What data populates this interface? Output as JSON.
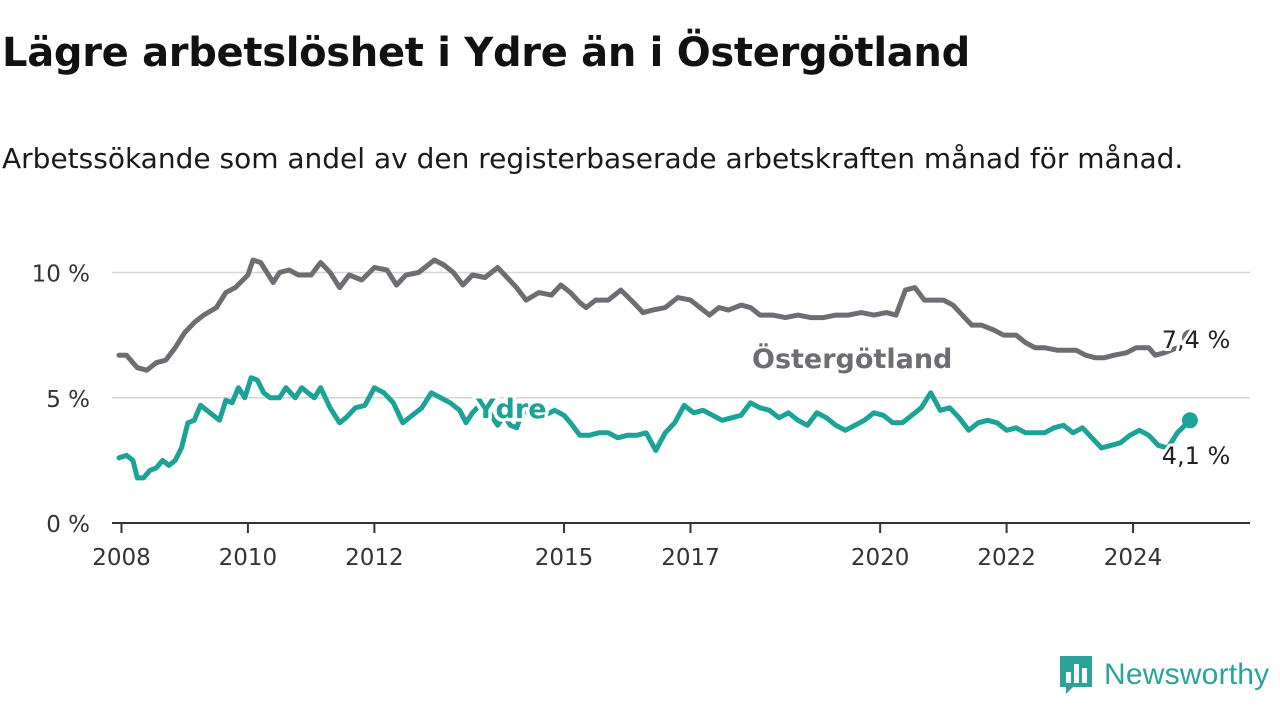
{
  "header": {
    "title": "Lägre arbetslöshet i Ydre än i Östergötland",
    "subtitle": "Arbetssökande som andel av den registerbaserade arbetskraften månad för månad."
  },
  "brand": {
    "name": "Newsworthy",
    "color": "#2ba39a",
    "icon": "bar-chart-speech-bubble-icon"
  },
  "chart_data": {
    "type": "line",
    "ylim": [
      0,
      10.5
    ],
    "xlim": [
      2007.85,
      2025.85
    ],
    "yticks": [
      {
        "value": 0,
        "label": "0 %"
      },
      {
        "value": 5,
        "label": "5 %"
      },
      {
        "value": 10,
        "label": "10 %"
      }
    ],
    "xticks": [
      {
        "value": 2008,
        "label": "2008"
      },
      {
        "value": 2010,
        "label": "2010"
      },
      {
        "value": 2012,
        "label": "2012"
      },
      {
        "value": 2015,
        "label": "2015"
      },
      {
        "value": 2017,
        "label": "2017"
      },
      {
        "value": 2020,
        "label": "2020"
      },
      {
        "value": 2022,
        "label": "2022"
      },
      {
        "value": 2024,
        "label": "2024"
      }
    ],
    "grid": true,
    "series": [
      {
        "name": "Östergötland",
        "color": "#6e6d73",
        "end_label": "7,4 %",
        "points": [
          [
            2007.96,
            6.7
          ],
          [
            2008.08,
            6.7
          ],
          [
            2008.25,
            6.2
          ],
          [
            2008.4,
            6.1
          ],
          [
            2008.55,
            6.4
          ],
          [
            2008.7,
            6.5
          ],
          [
            2008.85,
            7.0
          ],
          [
            2009.0,
            7.6
          ],
          [
            2009.15,
            8.0
          ],
          [
            2009.3,
            8.3
          ],
          [
            2009.5,
            8.6
          ],
          [
            2009.65,
            9.2
          ],
          [
            2009.8,
            9.4
          ],
          [
            2010.0,
            9.9
          ],
          [
            2010.08,
            10.5
          ],
          [
            2010.2,
            10.4
          ],
          [
            2010.3,
            10.0
          ],
          [
            2010.4,
            9.6
          ],
          [
            2010.5,
            10.0
          ],
          [
            2010.65,
            10.1
          ],
          [
            2010.8,
            9.9
          ],
          [
            2011.0,
            9.9
          ],
          [
            2011.15,
            10.4
          ],
          [
            2011.3,
            10.0
          ],
          [
            2011.45,
            9.4
          ],
          [
            2011.6,
            9.9
          ],
          [
            2011.8,
            9.7
          ],
          [
            2012.0,
            10.2
          ],
          [
            2012.2,
            10.1
          ],
          [
            2012.35,
            9.5
          ],
          [
            2012.5,
            9.9
          ],
          [
            2012.7,
            10.0
          ],
          [
            2012.95,
            10.5
          ],
          [
            2013.1,
            10.3
          ],
          [
            2013.25,
            10.0
          ],
          [
            2013.4,
            9.5
          ],
          [
            2013.55,
            9.9
          ],
          [
            2013.75,
            9.8
          ],
          [
            2013.95,
            10.2
          ],
          [
            2014.1,
            9.8
          ],
          [
            2014.25,
            9.4
          ],
          [
            2014.4,
            8.9
          ],
          [
            2014.6,
            9.2
          ],
          [
            2014.8,
            9.1
          ],
          [
            2014.95,
            9.5
          ],
          [
            2015.1,
            9.2
          ],
          [
            2015.25,
            8.8
          ],
          [
            2015.35,
            8.6
          ],
          [
            2015.5,
            8.9
          ],
          [
            2015.7,
            8.9
          ],
          [
            2015.9,
            9.3
          ],
          [
            2016.1,
            8.8
          ],
          [
            2016.25,
            8.4
          ],
          [
            2016.4,
            8.5
          ],
          [
            2016.6,
            8.6
          ],
          [
            2016.8,
            9.0
          ],
          [
            2017.0,
            8.9
          ],
          [
            2017.15,
            8.6
          ],
          [
            2017.3,
            8.3
          ],
          [
            2017.45,
            8.6
          ],
          [
            2017.6,
            8.5
          ],
          [
            2017.8,
            8.7
          ],
          [
            2017.95,
            8.6
          ],
          [
            2018.1,
            8.3
          ],
          [
            2018.3,
            8.3
          ],
          [
            2018.5,
            8.2
          ],
          [
            2018.7,
            8.3
          ],
          [
            2018.9,
            8.2
          ],
          [
            2019.1,
            8.2
          ],
          [
            2019.3,
            8.3
          ],
          [
            2019.5,
            8.3
          ],
          [
            2019.7,
            8.4
          ],
          [
            2019.9,
            8.3
          ],
          [
            2020.1,
            8.4
          ],
          [
            2020.25,
            8.3
          ],
          [
            2020.4,
            9.3
          ],
          [
            2020.55,
            9.4
          ],
          [
            2020.7,
            8.9
          ],
          [
            2020.85,
            8.9
          ],
          [
            2021.0,
            8.9
          ],
          [
            2021.15,
            8.7
          ],
          [
            2021.3,
            8.3
          ],
          [
            2021.45,
            7.9
          ],
          [
            2021.6,
            7.9
          ],
          [
            2021.8,
            7.7
          ],
          [
            2021.95,
            7.5
          ],
          [
            2022.15,
            7.5
          ],
          [
            2022.3,
            7.2
          ],
          [
            2022.45,
            7.0
          ],
          [
            2022.6,
            7.0
          ],
          [
            2022.8,
            6.9
          ],
          [
            2022.95,
            6.9
          ],
          [
            2023.1,
            6.9
          ],
          [
            2023.25,
            6.7
          ],
          [
            2023.4,
            6.6
          ],
          [
            2023.55,
            6.6
          ],
          [
            2023.7,
            6.7
          ],
          [
            2023.9,
            6.8
          ],
          [
            2024.05,
            7.0
          ],
          [
            2024.25,
            7.0
          ],
          [
            2024.35,
            6.7
          ],
          [
            2024.5,
            6.8
          ],
          [
            2024.7,
            7.0
          ],
          [
            2024.85,
            7.2
          ],
          [
            2024.9,
            7.4
          ]
        ]
      },
      {
        "name": "Ydre",
        "color": "#1aa396",
        "end_label": "4,1 %",
        "points": [
          [
            2007.96,
            2.6
          ],
          [
            2008.08,
            2.7
          ],
          [
            2008.18,
            2.5
          ],
          [
            2008.25,
            1.8
          ],
          [
            2008.35,
            1.8
          ],
          [
            2008.45,
            2.1
          ],
          [
            2008.55,
            2.2
          ],
          [
            2008.65,
            2.5
          ],
          [
            2008.75,
            2.3
          ],
          [
            2008.85,
            2.5
          ],
          [
            2008.95,
            3.0
          ],
          [
            2009.05,
            4.0
          ],
          [
            2009.15,
            4.1
          ],
          [
            2009.25,
            4.7
          ],
          [
            2009.4,
            4.4
          ],
          [
            2009.55,
            4.1
          ],
          [
            2009.65,
            4.9
          ],
          [
            2009.75,
            4.8
          ],
          [
            2009.85,
            5.4
          ],
          [
            2009.95,
            5.0
          ],
          [
            2010.05,
            5.8
          ],
          [
            2010.15,
            5.7
          ],
          [
            2010.25,
            5.2
          ],
          [
            2010.35,
            5.0
          ],
          [
            2010.5,
            5.0
          ],
          [
            2010.6,
            5.4
          ],
          [
            2010.75,
            5.0
          ],
          [
            2010.85,
            5.4
          ],
          [
            2010.95,
            5.2
          ],
          [
            2011.05,
            5.0
          ],
          [
            2011.15,
            5.4
          ],
          [
            2011.3,
            4.6
          ],
          [
            2011.45,
            4.0
          ],
          [
            2011.55,
            4.2
          ],
          [
            2011.7,
            4.6
          ],
          [
            2011.85,
            4.7
          ],
          [
            2012.0,
            5.4
          ],
          [
            2012.15,
            5.2
          ],
          [
            2012.3,
            4.8
          ],
          [
            2012.45,
            4.0
          ],
          [
            2012.6,
            4.3
          ],
          [
            2012.75,
            4.6
          ],
          [
            2012.9,
            5.2
          ],
          [
            2013.05,
            5.0
          ],
          [
            2013.2,
            4.8
          ],
          [
            2013.35,
            4.5
          ],
          [
            2013.45,
            4.0
          ],
          [
            2013.55,
            4.4
          ],
          [
            2013.7,
            4.8
          ],
          [
            2013.85,
            4.3
          ],
          [
            2013.95,
            3.9
          ],
          [
            2014.05,
            4.3
          ],
          [
            2014.15,
            3.9
          ],
          [
            2014.25,
            3.8
          ],
          [
            2014.35,
            4.5
          ],
          [
            2014.5,
            4.3
          ],
          [
            2014.6,
            4.6
          ],
          [
            2014.7,
            4.3
          ],
          [
            2014.85,
            4.5
          ],
          [
            2015.0,
            4.3
          ],
          [
            2015.1,
            4.0
          ],
          [
            2015.25,
            3.5
          ],
          [
            2015.4,
            3.5
          ],
          [
            2015.55,
            3.6
          ],
          [
            2015.7,
            3.6
          ],
          [
            2015.85,
            3.4
          ],
          [
            2016.0,
            3.5
          ],
          [
            2016.15,
            3.5
          ],
          [
            2016.3,
            3.6
          ],
          [
            2016.45,
            2.9
          ],
          [
            2016.6,
            3.6
          ],
          [
            2016.75,
            4.0
          ],
          [
            2016.9,
            4.7
          ],
          [
            2017.05,
            4.4
          ],
          [
            2017.2,
            4.5
          ],
          [
            2017.35,
            4.3
          ],
          [
            2017.5,
            4.1
          ],
          [
            2017.65,
            4.2
          ],
          [
            2017.8,
            4.3
          ],
          [
            2017.95,
            4.8
          ],
          [
            2018.1,
            4.6
          ],
          [
            2018.25,
            4.5
          ],
          [
            2018.4,
            4.2
          ],
          [
            2018.55,
            4.4
          ],
          [
            2018.7,
            4.1
          ],
          [
            2018.85,
            3.9
          ],
          [
            2019.0,
            4.4
          ],
          [
            2019.15,
            4.2
          ],
          [
            2019.3,
            3.9
          ],
          [
            2019.45,
            3.7
          ],
          [
            2019.6,
            3.9
          ],
          [
            2019.75,
            4.1
          ],
          [
            2019.9,
            4.4
          ],
          [
            2020.05,
            4.3
          ],
          [
            2020.2,
            4.0
          ],
          [
            2020.35,
            4.0
          ],
          [
            2020.5,
            4.3
          ],
          [
            2020.65,
            4.6
          ],
          [
            2020.8,
            5.2
          ],
          [
            2020.95,
            4.5
          ],
          [
            2021.1,
            4.6
          ],
          [
            2021.25,
            4.2
          ],
          [
            2021.4,
            3.7
          ],
          [
            2021.55,
            4.0
          ],
          [
            2021.7,
            4.1
          ],
          [
            2021.85,
            4.0
          ],
          [
            2022.0,
            3.7
          ],
          [
            2022.15,
            3.8
          ],
          [
            2022.3,
            3.6
          ],
          [
            2022.45,
            3.6
          ],
          [
            2022.6,
            3.6
          ],
          [
            2022.75,
            3.8
          ],
          [
            2022.9,
            3.9
          ],
          [
            2023.05,
            3.6
          ],
          [
            2023.2,
            3.8
          ],
          [
            2023.35,
            3.4
          ],
          [
            2023.5,
            3.0
          ],
          [
            2023.65,
            3.1
          ],
          [
            2023.8,
            3.2
          ],
          [
            2023.95,
            3.5
          ],
          [
            2024.1,
            3.7
          ],
          [
            2024.25,
            3.5
          ],
          [
            2024.4,
            3.1
          ],
          [
            2024.55,
            3.0
          ],
          [
            2024.7,
            3.6
          ],
          [
            2024.9,
            4.1
          ]
        ]
      }
    ]
  }
}
